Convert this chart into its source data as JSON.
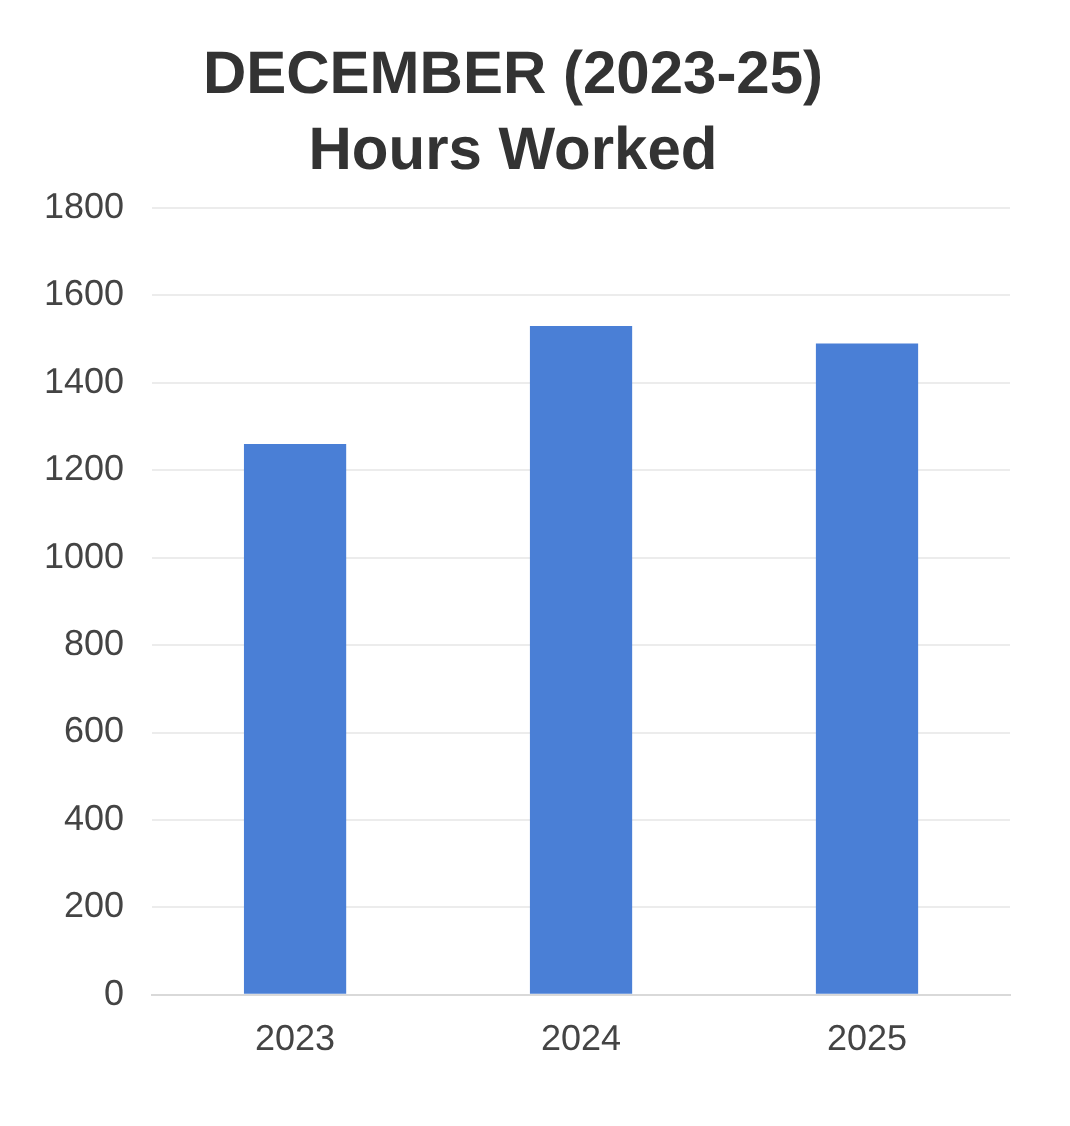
{
  "chart_data": {
    "type": "bar",
    "title": "DECEMBER (2023-25)",
    "subtitle": "Hours Worked",
    "categories": [
      "2023",
      "2024",
      "2025"
    ],
    "values": [
      1260,
      1530,
      1490
    ],
    "color": "#4a7fd6",
    "ylim": [
      0,
      1800
    ],
    "yticks": [
      0,
      200,
      400,
      600,
      800,
      1000,
      1200,
      1400,
      1600,
      1800
    ],
    "grid": "y",
    "legend": false
  }
}
